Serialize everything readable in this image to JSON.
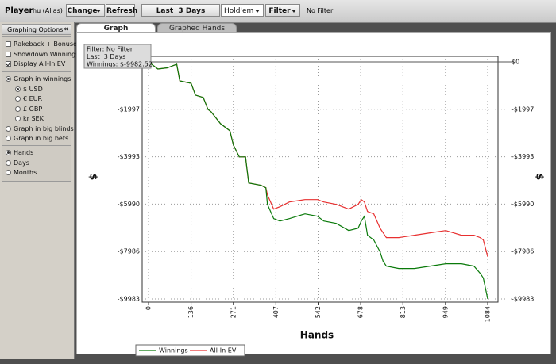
{
  "toolbar": {
    "player_label": "Player",
    "player": "hu (Alias)",
    "change": "Change",
    "refresh": "Refresh",
    "period": "Last  3 Days",
    "game": "Hold'em",
    "filter": "Filter",
    "filter_status": "No Filter"
  },
  "tabs": [
    {
      "label": "Graph",
      "active": true
    },
    {
      "label": "Graphed Hands",
      "active": false
    }
  ],
  "sidebar": {
    "title": "Graphing Options",
    "collapse": "«",
    "groups": [
      {
        "items": [
          {
            "label": "Rakeback + Bonuses",
            "kind": "checkbox",
            "checked": false
          },
          {
            "label": "Showdown Winnings",
            "kind": "checkbox",
            "checked": false
          },
          {
            "label": "Display All-In EV",
            "kind": "checkbox",
            "checked": true
          }
        ]
      },
      {
        "items": [
          {
            "label": "Graph in winnings",
            "kind": "radio",
            "checked": true,
            "options": [
              {
                "label": "$ USD",
                "checked": true
              },
              {
                "label": "€ EUR",
                "checked": false
              },
              {
                "label": "£ GBP",
                "checked": false
              },
              {
                "label": "kr SEK",
                "checked": false
              }
            ]
          },
          {
            "label": "Graph in big blinds",
            "kind": "radio",
            "checked": false
          },
          {
            "label": "Graph in big bets",
            "kind": "radio",
            "checked": false
          }
        ]
      },
      {
        "items": [
          {
            "label": "Hands",
            "kind": "radio",
            "checked": true
          },
          {
            "label": "Days",
            "kind": "radio",
            "checked": false
          },
          {
            "label": "Months",
            "kind": "radio",
            "checked": false
          }
        ]
      }
    ]
  },
  "chart_data": {
    "type": "line",
    "x_label": "Hands",
    "y_label": "$",
    "legend": "bottom-left",
    "grid": true,
    "annotations": [
      "Filter: No Filter",
      "Last  3 Days",
      "Winnings: $-9982.52"
    ],
    "xlim": [
      0,
      1084
    ],
    "xticks": [
      0,
      136,
      271,
      407,
      542,
      678,
      813,
      949,
      1084
    ],
    "ylim": [
      -9983,
      0
    ],
    "yticks": [
      {
        "value": 0,
        "label": "$0"
      },
      {
        "value": -1997,
        "label": "-$1997"
      },
      {
        "value": -3993,
        "label": "-$3993"
      },
      {
        "value": -5990,
        "label": "-$5990"
      },
      {
        "value": -7986,
        "label": "-$7986"
      },
      {
        "value": -9983,
        "label": "-$9983"
      }
    ],
    "x": [
      0,
      15,
      30,
      60,
      90,
      100,
      136,
      150,
      175,
      190,
      200,
      230,
      260,
      271,
      290,
      310,
      320,
      360,
      375,
      380,
      400,
      420,
      450,
      500,
      540,
      560,
      600,
      640,
      670,
      680,
      690,
      700,
      720,
      740,
      750,
      760,
      800,
      850,
      900,
      950,
      1000,
      1040,
      1060,
      1070,
      1084
    ],
    "series": [
      {
        "name": "Winnings",
        "color": "#0a7a0a",
        "values": [
          0,
          -150,
          -300,
          -250,
          -100,
          -800,
          -900,
          -1400,
          -1500,
          -2000,
          -2100,
          -2600,
          -2900,
          -3500,
          -4000,
          -4000,
          -5100,
          -5200,
          -5300,
          -6000,
          -6600,
          -6700,
          -6600,
          -6400,
          -6500,
          -6700,
          -6800,
          -7100,
          -7000,
          -6700,
          -6500,
          -7300,
          -7500,
          -8000,
          -8400,
          -8600,
          -8700,
          -8700,
          -8600,
          -8500,
          -8500,
          -8600,
          -8900,
          -9100,
          -9983
        ]
      },
      {
        "name": "All-In EV",
        "color": "#e83030",
        "values": [
          0,
          -150,
          -300,
          -250,
          -100,
          -800,
          -900,
          -1400,
          -1500,
          -2000,
          -2100,
          -2600,
          -2900,
          -3500,
          -4000,
          -4000,
          -5100,
          -5200,
          -5300,
          -5600,
          -6200,
          -6100,
          -5900,
          -5800,
          -5800,
          -5900,
          -6000,
          -6200,
          -6000,
          -5800,
          -5900,
          -6300,
          -6400,
          -7000,
          -7200,
          -7400,
          -7400,
          -7300,
          -7200,
          -7100,
          -7300,
          -7300,
          -7400,
          -7500,
          -8200
        ]
      }
    ]
  }
}
